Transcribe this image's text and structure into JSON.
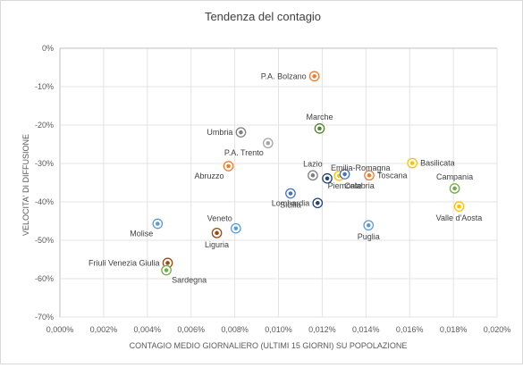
{
  "chart_data": {
    "type": "scatter",
    "title": "Tendenza del contagio",
    "xlabel": "CONTAGIO MEDIO GIORNALIERO (ULTIMI 15 GIORNI) SU POPOLAZIONE",
    "ylabel": "VELOCITA' DI DIFFUSIONE",
    "xlim": [
      0,
      0.0002
    ],
    "ylim": [
      -0.7,
      0
    ],
    "x_ticks": [
      0,
      2e-05,
      4e-05,
      6e-05,
      8e-05,
      0.0001,
      0.00012,
      0.00014,
      0.00016,
      0.00018,
      0.0002
    ],
    "x_tick_labels": [
      "0,000%",
      "0,002%",
      "0,004%",
      "0,006%",
      "0,008%",
      "0,010%",
      "0,012%",
      "0,014%",
      "0,016%",
      "0,018%",
      "0,020%"
    ],
    "y_ticks": [
      0,
      -0.1,
      -0.2,
      -0.3,
      -0.4,
      -0.5,
      -0.6,
      -0.7
    ],
    "y_tick_labels": [
      "0%",
      "-10%",
      "-20%",
      "-30%",
      "-40%",
      "-50%",
      "-60%",
      "-70%"
    ],
    "grid": true,
    "points": [
      {
        "label": "P.A. Bolzano",
        "x": 0.0001164,
        "y": -0.073,
        "color": "#ed7d31",
        "label_pos": "left"
      },
      {
        "label": "Marche",
        "x": 0.0001188,
        "y": -0.209,
        "color": "#548235",
        "label_pos": "above"
      },
      {
        "label": "Umbria",
        "x": 8.28e-05,
        "y": -0.219,
        "color": "#7f7f7f",
        "label_pos": "left"
      },
      {
        "label": "P.A. Trento",
        "x": 9.52e-05,
        "y": -0.247,
        "color": "#a5a5a5",
        "label_pos": "below-left"
      },
      {
        "label": "Lazio",
        "x": 0.0001157,
        "y": -0.331,
        "color": "#7f7f7f",
        "label_pos": "above"
      },
      {
        "label": "Emilia-Romagna",
        "x": 0.0001223,
        "y": -0.339,
        "color": "#264478",
        "label_pos": "above-right"
      },
      {
        "label": "Calabria",
        "x": 0.0001277,
        "y": -0.332,
        "color": "#ffc000",
        "label_pos": "below-right"
      },
      {
        "label": "Toscana",
        "x": 0.0001415,
        "y": -0.331,
        "color": "#ed7d31",
        "label_pos": "right"
      },
      {
        "label": "Basilicata",
        "x": 0.0001612,
        "y": -0.299,
        "color": "#ffc000",
        "label_pos": "right"
      },
      {
        "label": "Campania",
        "x": 0.0001806,
        "y": -0.365,
        "color": "#70ad47",
        "label_pos": "above"
      },
      {
        "label": "Abruzzo",
        "x": 7.71e-05,
        "y": -0.307,
        "color": "#ed7d31",
        "label_pos": "below-left"
      },
      {
        "label": "Sicilia",
        "x": 0.0001055,
        "y": -0.378,
        "color": "#4472c4",
        "label_pos": "below"
      },
      {
        "label": "Lombardia",
        "x": 0.0001179,
        "y": -0.403,
        "color": "#264478",
        "label_pos": "left"
      },
      {
        "label": "Piemonte",
        "x": 0.0001303,
        "y": -0.328,
        "color": "#4472c4",
        "label_pos": "below"
      },
      {
        "label": "Valle d'Aosta",
        "x": 0.0001826,
        "y": -0.412,
        "color": "#ffc000",
        "label_pos": "below"
      },
      {
        "label": "Puglia",
        "x": 0.0001412,
        "y": -0.461,
        "color": "#5b9bd5",
        "label_pos": "below"
      },
      {
        "label": "Molise",
        "x": 4.47e-05,
        "y": -0.457,
        "color": "#5b9bd5",
        "label_pos": "below-left"
      },
      {
        "label": "Veneto",
        "x": 8.05e-05,
        "y": -0.469,
        "color": "#5b9bd5",
        "label_pos": "above-left"
      },
      {
        "label": "Liguria",
        "x": 7.18e-05,
        "y": -0.481,
        "color": "#9e480e",
        "label_pos": "below"
      },
      {
        "label": "Friuli Venezia Giulia",
        "x": 4.93e-05,
        "y": -0.559,
        "color": "#9e480e",
        "label_pos": "left"
      },
      {
        "label": "Sardegna",
        "x": 4.87e-05,
        "y": -0.578,
        "color": "#70ad47",
        "label_pos": "below-right"
      }
    ]
  }
}
